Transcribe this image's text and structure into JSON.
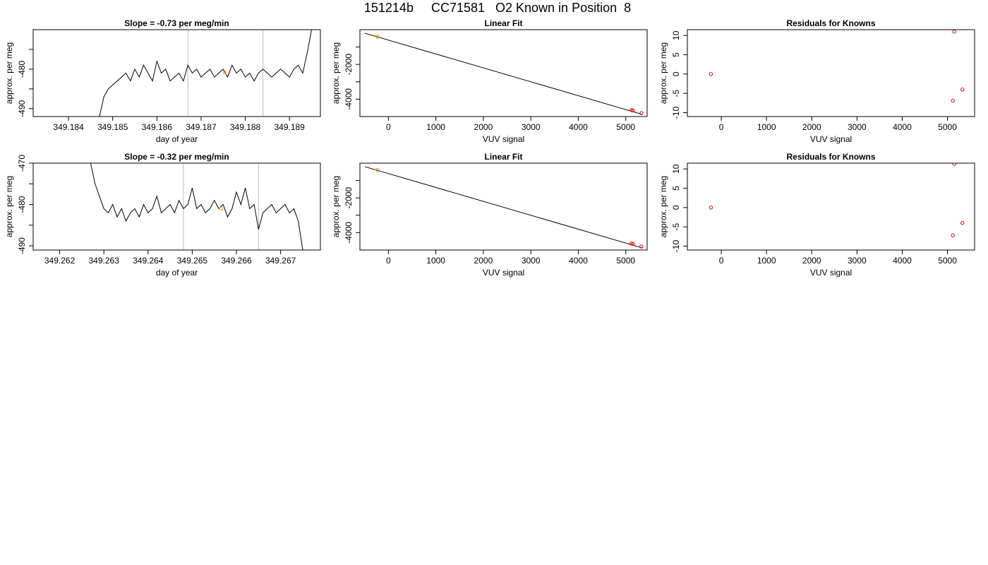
{
  "figure_title": "151214b     CC71581   O2 Known in Position  8",
  "chart_data": [
    {
      "type": "line",
      "title": "Slope =  -0.73  per meg/min",
      "xlabel": "day of year",
      "ylabel": "approx. per meg",
      "xlim": [
        349.1832,
        349.1897
      ],
      "ylim": [
        -492,
        -470
      ],
      "x_ticks": [
        349.184,
        349.185,
        349.186,
        349.187,
        349.188,
        349.189
      ],
      "x_tick_labels": [
        "349.184",
        "349.185",
        "349.186",
        "349.187",
        "349.188",
        "349.189"
      ],
      "y_ticks": [
        -490,
        -485,
        -480,
        -475
      ],
      "y_tick_labels": [
        "-490",
        "",
        "-480",
        ""
      ],
      "vlines": [
        349.1867,
        349.1884
      ],
      "series": [
        {
          "x": [
            349.1847,
            349.1848,
            349.1849,
            349.185,
            349.1851,
            349.1852,
            349.1853,
            349.1854,
            349.1855,
            349.1856,
            349.1857,
            349.1858,
            349.1859,
            349.186,
            349.1861,
            349.1862,
            349.1863,
            349.1864,
            349.1865,
            349.1866,
            349.1867,
            349.1868,
            349.1869,
            349.187,
            349.1871,
            349.1872,
            349.1873,
            349.1874,
            349.1875,
            349.1876,
            349.1877,
            349.1878,
            349.1879,
            349.188,
            349.1881,
            349.1882,
            349.1883,
            349.1884,
            349.1885,
            349.1886,
            349.1887,
            349.1888,
            349.1889,
            349.189,
            349.1891,
            349.1892,
            349.1893,
            349.1894,
            349.1895
          ],
          "y": [
            -492,
            -487,
            -485,
            -484,
            -483,
            -482,
            -481,
            -483,
            -480,
            -482,
            -479,
            -481,
            -483,
            -478,
            -481,
            -480,
            -483,
            -482,
            -481,
            -483,
            -479,
            -481,
            -480,
            -482,
            -481,
            -480,
            -482,
            -481,
            -480,
            -482,
            -479,
            -481,
            -480,
            -482,
            -481,
            -483,
            -481,
            -480,
            -481,
            -482,
            -481,
            -480,
            -481,
            -482,
            -480,
            -479,
            -481,
            -476,
            -470
          ]
        }
      ],
      "highlight_points": [
        {
          "x": 349.18753,
          "y": -480.8
        }
      ]
    },
    {
      "type": "scatter",
      "title": "Linear Fit",
      "xlabel": "VUV signal",
      "ylabel": "approx. per meg",
      "xlim": [
        -600,
        5450
      ],
      "ylim": [
        -5000,
        0
      ],
      "x_ticks": [
        0,
        1000,
        2000,
        3000,
        4000,
        5000
      ],
      "x_tick_labels": [
        "0",
        "1000",
        "2000",
        "3000",
        "4000",
        "5000"
      ],
      "y_ticks": [
        -4000,
        -3000,
        -2000,
        -1000
      ],
      "y_tick_labels": [
        "-4000",
        "",
        "-2000",
        ""
      ],
      "fit_line": {
        "x": [
          -500,
          5350
        ],
        "y": [
          -200,
          -4880
        ]
      },
      "points": [
        {
          "x": -230,
          "y": -400,
          "color": "orange"
        },
        {
          "x": 5120,
          "y": -4630,
          "color": "red"
        },
        {
          "x": 5150,
          "y": -4650,
          "color": "red"
        },
        {
          "x": 5330,
          "y": -4800,
          "color": "red"
        }
      ]
    },
    {
      "type": "scatter",
      "title": "Residuals for Knowns",
      "xlabel": "VUV signal",
      "ylabel": "approx. per meg",
      "xlim": [
        -750,
        5600
      ],
      "ylim": [
        -11,
        11.5
      ],
      "x_ticks": [
        0,
        1000,
        2000,
        3000,
        4000,
        5000
      ],
      "x_tick_labels": [
        "0",
        "1000",
        "2000",
        "3000",
        "4000",
        "5000"
      ],
      "y_ticks": [
        -10,
        -5,
        0,
        5,
        10
      ],
      "y_tick_labels": [
        "-10",
        "-5",
        "0",
        "5",
        "10"
      ],
      "points": [
        {
          "x": -230,
          "y": 0,
          "color": "red"
        },
        {
          "x": 5150,
          "y": 11,
          "color": "red"
        },
        {
          "x": 5120,
          "y": -6.9,
          "color": "red"
        },
        {
          "x": 5330,
          "y": -4,
          "color": "red"
        }
      ]
    },
    {
      "type": "line",
      "title": "Slope =  -0.32  per meg/min",
      "xlabel": "day of year",
      "ylabel": "approx. per meg",
      "xlim": [
        349.2614,
        349.2679
      ],
      "ylim": [
        -491,
        -470
      ],
      "x_ticks": [
        349.262,
        349.263,
        349.264,
        349.265,
        349.266,
        349.267
      ],
      "x_tick_labels": [
        "349.262",
        "349.263",
        "349.264",
        "349.265",
        "349.266",
        "349.267"
      ],
      "y_ticks": [
        -490,
        -485,
        -480,
        -475,
        -470
      ],
      "y_tick_labels": [
        "-490",
        "",
        "-480",
        "",
        "-470"
      ],
      "vlines": [
        349.2648,
        349.2665
      ],
      "series": [
        {
          "x": [
            349.2627,
            349.2628,
            349.2629,
            349.263,
            349.2631,
            349.2632,
            349.2633,
            349.2634,
            349.2635,
            349.2636,
            349.2637,
            349.2638,
            349.2639,
            349.264,
            349.2641,
            349.2642,
            349.2643,
            349.2644,
            349.2645,
            349.2646,
            349.2647,
            349.2648,
            349.2649,
            349.265,
            349.2651,
            349.2652,
            349.2653,
            349.2654,
            349.2655,
            349.2656,
            349.2657,
            349.2658,
            349.2659,
            349.266,
            349.2661,
            349.2662,
            349.2663,
            349.2664,
            349.2665,
            349.2666,
            349.2667,
            349.2668,
            349.2669,
            349.267,
            349.2671,
            349.2672,
            349.2673,
            349.2674,
            349.2675
          ],
          "y": [
            -470,
            -475,
            -478,
            -481,
            -482,
            -480,
            -483,
            -481,
            -484,
            -482,
            -481,
            -483,
            -480,
            -482,
            -481,
            -478,
            -482,
            -481,
            -480,
            -482,
            -479,
            -481,
            -480,
            -476,
            -481,
            -480,
            -482,
            -481,
            -479,
            -481,
            -480,
            -483,
            -481,
            -477,
            -480,
            -476,
            -481,
            -480,
            -486,
            -482,
            -481,
            -480,
            -482,
            -481,
            -480,
            -482,
            -481,
            -484,
            -491
          ]
        }
      ],
      "highlight_points": [
        {
          "x": 349.26565,
          "y": -481
        }
      ]
    },
    {
      "type": "scatter",
      "title": "Linear Fit",
      "xlabel": "VUV signal",
      "ylabel": "approx. per meg",
      "xlim": [
        -600,
        5450
      ],
      "ylim": [
        -5000,
        0
      ],
      "x_ticks": [
        0,
        1000,
        2000,
        3000,
        4000,
        5000
      ],
      "x_tick_labels": [
        "0",
        "1000",
        "2000",
        "3000",
        "4000",
        "5000"
      ],
      "y_ticks": [
        -4000,
        -3000,
        -2000,
        -1000
      ],
      "y_tick_labels": [
        "-4000",
        "",
        "-2000",
        ""
      ],
      "fit_line": {
        "x": [
          -500,
          5350
        ],
        "y": [
          -200,
          -4880
        ]
      },
      "points": [
        {
          "x": -230,
          "y": -400,
          "color": "orange"
        },
        {
          "x": 5120,
          "y": -4630,
          "color": "red"
        },
        {
          "x": 5150,
          "y": -4650,
          "color": "red"
        },
        {
          "x": 5330,
          "y": -4800,
          "color": "red"
        }
      ]
    },
    {
      "type": "scatter",
      "title": "Residuals for Knowns",
      "xlabel": "VUV signal",
      "ylabel": "approx. per meg",
      "xlim": [
        -750,
        5600
      ],
      "ylim": [
        -11,
        11.5
      ],
      "x_ticks": [
        0,
        1000,
        2000,
        3000,
        4000,
        5000
      ],
      "x_tick_labels": [
        "0",
        "1000",
        "2000",
        "3000",
        "4000",
        "5000"
      ],
      "y_ticks": [
        -10,
        -5,
        0,
        5,
        10
      ],
      "y_tick_labels": [
        "-10",
        "-5",
        "0",
        "5",
        "10"
      ],
      "points": [
        {
          "x": -230,
          "y": 0,
          "color": "red"
        },
        {
          "x": 5150,
          "y": 11.3,
          "color": "red"
        },
        {
          "x": 5120,
          "y": -7.2,
          "color": "red"
        },
        {
          "x": 5330,
          "y": -4,
          "color": "red"
        }
      ]
    }
  ]
}
